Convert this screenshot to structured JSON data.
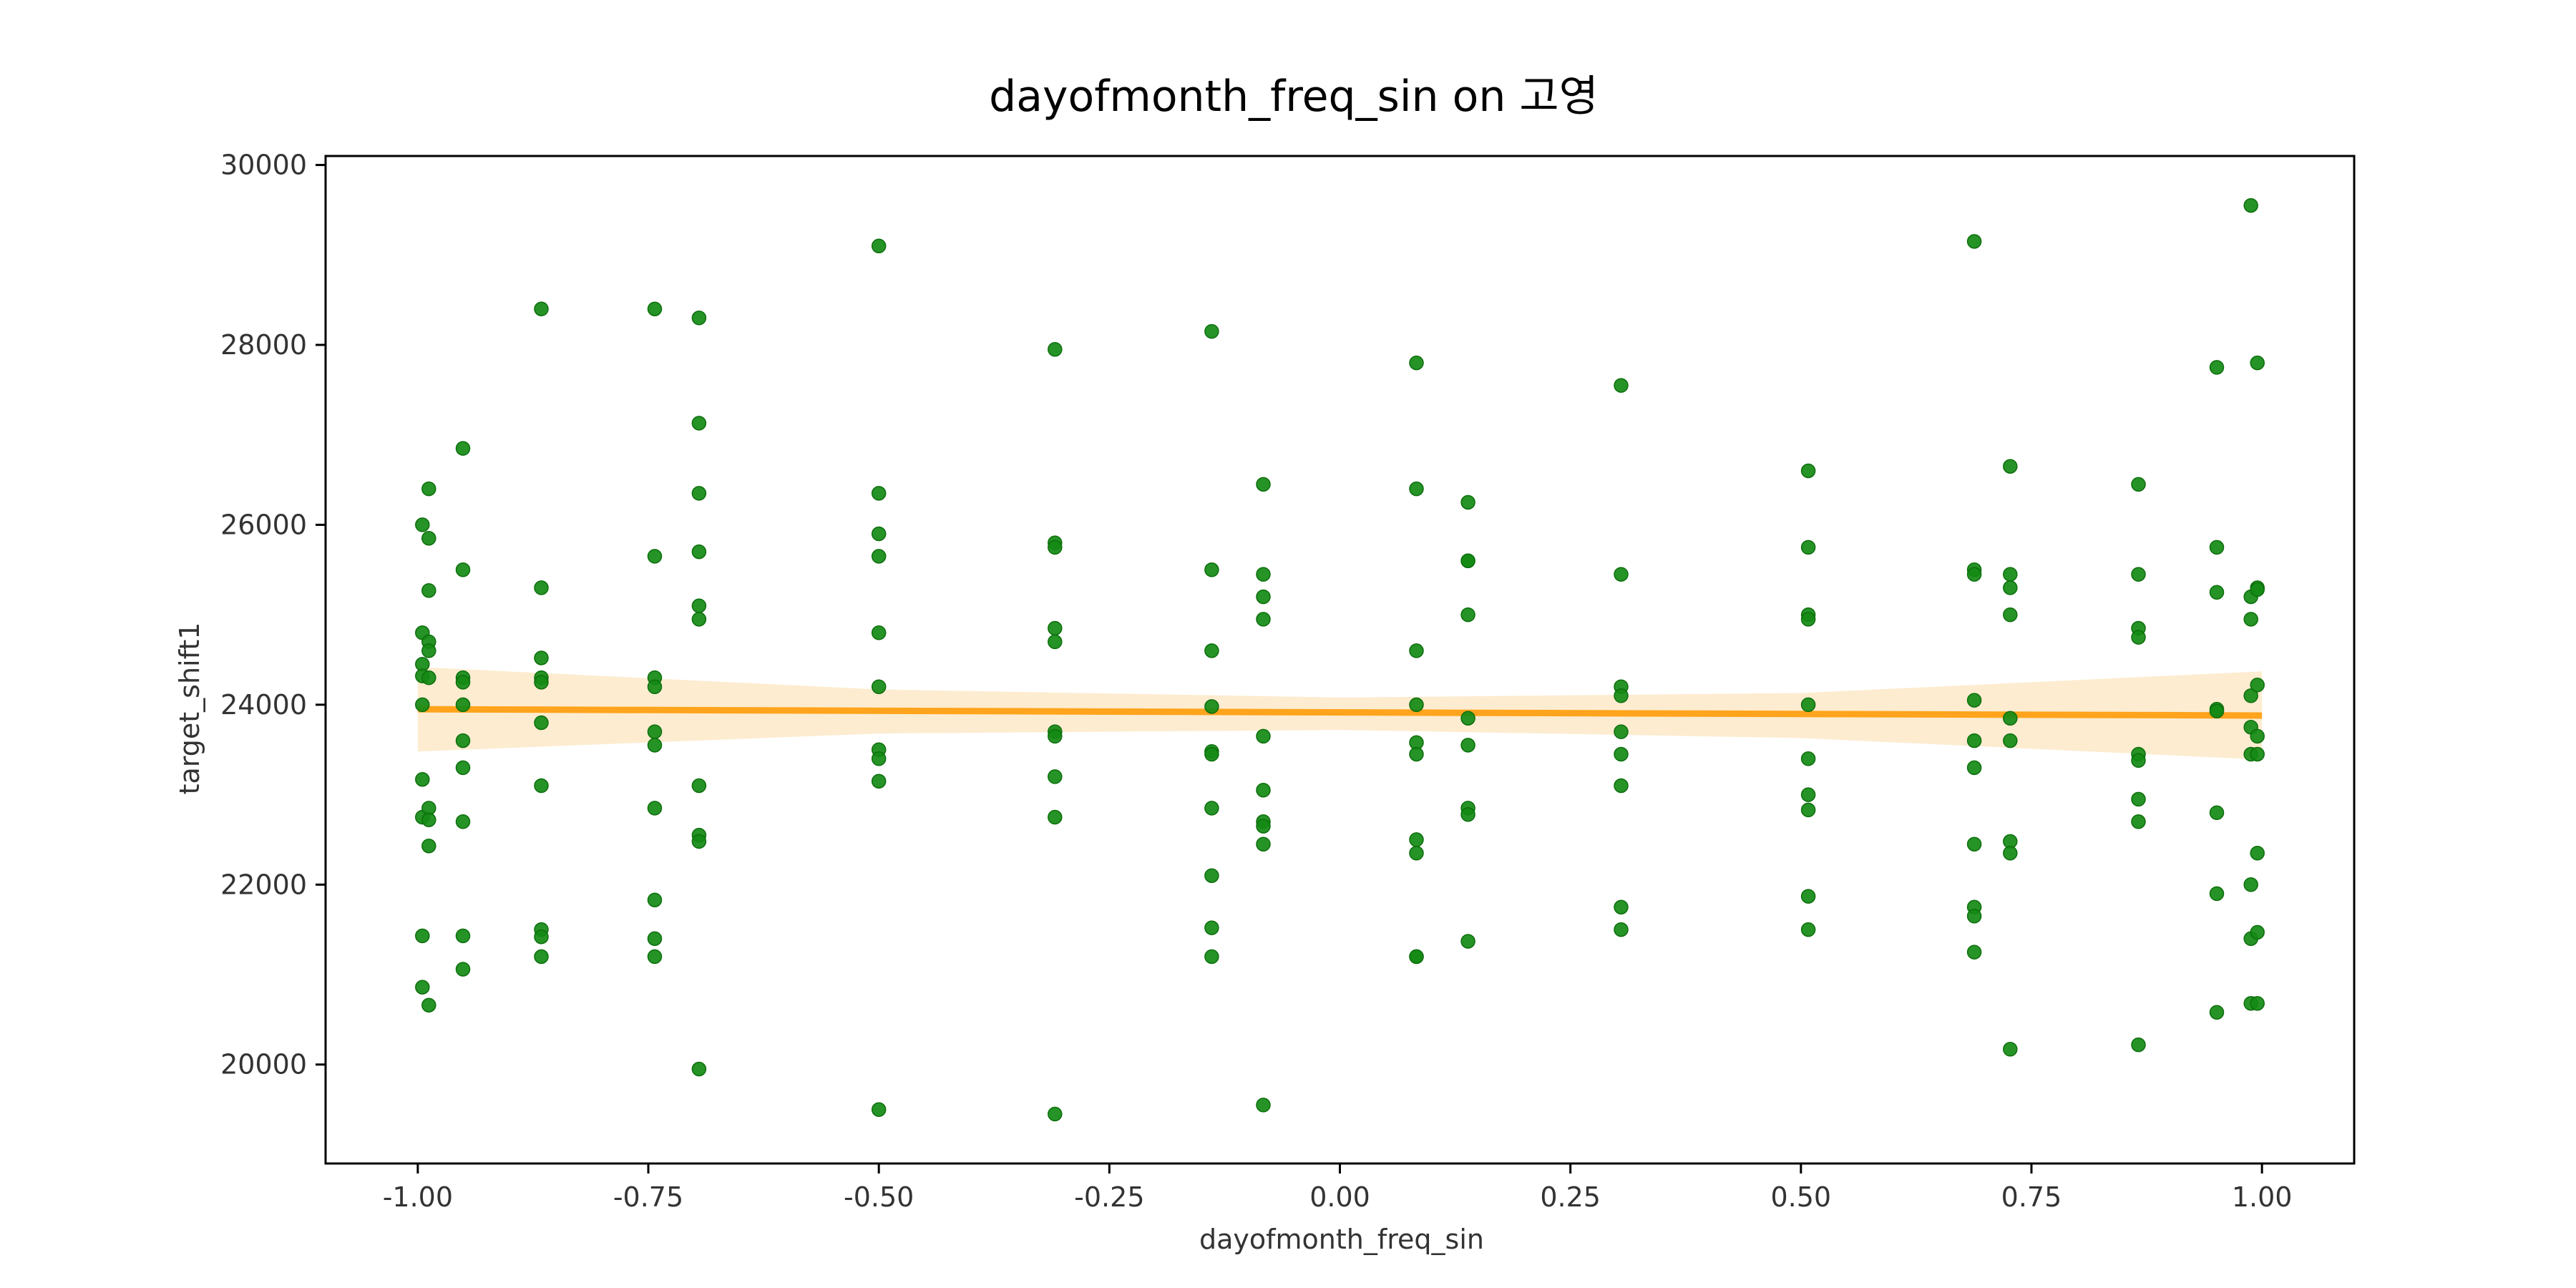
{
  "chart_data": {
    "type": "scatter",
    "title": "dayofmonth_freq_sin on 고영",
    "xlabel": "dayofmonth_freq_sin",
    "ylabel": "target_shift1",
    "xlim": [
      -1.1,
      1.1
    ],
    "ylim": [
      18900,
      30100
    ],
    "x_ticks": [
      -1.0,
      -0.75,
      -0.5,
      -0.25,
      0.0,
      0.25,
      0.5,
      0.75,
      1.0
    ],
    "x_tick_labels": [
      "-1.00",
      "-0.75",
      "-0.50",
      "-0.25",
      "0.00",
      "0.25",
      "0.50",
      "0.75",
      "1.00"
    ],
    "y_ticks": [
      20000,
      22000,
      24000,
      26000,
      28000,
      30000
    ],
    "y_tick_labels": [
      "20000",
      "22000",
      "24000",
      "26000",
      "28000",
      "30000"
    ],
    "grid": false,
    "colors": {
      "points": "#138a13",
      "line": "#ffa41c",
      "band": "#fdecd0"
    },
    "points": [
      [
        -0.995,
        26000
      ],
      [
        -0.995,
        24800
      ],
      [
        -0.995,
        24450
      ],
      [
        -0.995,
        24320
      ],
      [
        -0.995,
        24000
      ],
      [
        -0.995,
        23170
      ],
      [
        -0.995,
        22750
      ],
      [
        -0.995,
        21430
      ],
      [
        -0.995,
        20860
      ],
      [
        -0.988,
        26400
      ],
      [
        -0.988,
        25850
      ],
      [
        -0.988,
        25270
      ],
      [
        -0.988,
        24700
      ],
      [
        -0.988,
        24600
      ],
      [
        -0.988,
        24300
      ],
      [
        -0.988,
        22850
      ],
      [
        -0.988,
        22720
      ],
      [
        -0.988,
        22430
      ],
      [
        -0.988,
        20660
      ],
      [
        -0.951,
        26850
      ],
      [
        -0.951,
        25500
      ],
      [
        -0.951,
        24300
      ],
      [
        -0.951,
        24250
      ],
      [
        -0.951,
        24000
      ],
      [
        -0.951,
        23600
      ],
      [
        -0.951,
        23300
      ],
      [
        -0.951,
        22700
      ],
      [
        -0.951,
        21430
      ],
      [
        -0.951,
        21060
      ],
      [
        -0.866,
        28400
      ],
      [
        -0.866,
        25300
      ],
      [
        -0.866,
        24520
      ],
      [
        -0.866,
        24300
      ],
      [
        -0.866,
        24250
      ],
      [
        -0.866,
        23800
      ],
      [
        -0.866,
        23100
      ],
      [
        -0.866,
        21500
      ],
      [
        -0.866,
        21420
      ],
      [
        -0.866,
        21200
      ],
      [
        -0.743,
        28400
      ],
      [
        -0.743,
        25650
      ],
      [
        -0.743,
        24300
      ],
      [
        -0.743,
        24200
      ],
      [
        -0.743,
        23700
      ],
      [
        -0.743,
        23550
      ],
      [
        -0.743,
        22850
      ],
      [
        -0.743,
        21830
      ],
      [
        -0.743,
        21400
      ],
      [
        -0.743,
        21200
      ],
      [
        -0.695,
        28300
      ],
      [
        -0.695,
        27130
      ],
      [
        -0.695,
        26350
      ],
      [
        -0.695,
        25700
      ],
      [
        -0.695,
        25100
      ],
      [
        -0.695,
        24950
      ],
      [
        -0.695,
        23100
      ],
      [
        -0.695,
        22550
      ],
      [
        -0.695,
        22480
      ],
      [
        -0.695,
        19950
      ],
      [
        -0.5,
        29100
      ],
      [
        -0.5,
        26350
      ],
      [
        -0.5,
        25900
      ],
      [
        -0.5,
        25650
      ],
      [
        -0.5,
        24800
      ],
      [
        -0.5,
        24200
      ],
      [
        -0.5,
        23500
      ],
      [
        -0.5,
        23400
      ],
      [
        -0.5,
        23150
      ],
      [
        -0.5,
        19500
      ],
      [
        -0.309,
        27950
      ],
      [
        -0.309,
        25800
      ],
      [
        -0.309,
        25750
      ],
      [
        -0.309,
        24850
      ],
      [
        -0.309,
        24700
      ],
      [
        -0.309,
        23700
      ],
      [
        -0.309,
        23650
      ],
      [
        -0.309,
        23200
      ],
      [
        -0.309,
        22750
      ],
      [
        -0.309,
        19450
      ],
      [
        -0.139,
        28150
      ],
      [
        -0.139,
        25500
      ],
      [
        -0.139,
        24600
      ],
      [
        -0.139,
        23980
      ],
      [
        -0.139,
        23480
      ],
      [
        -0.139,
        23450
      ],
      [
        -0.139,
        22850
      ],
      [
        -0.139,
        22100
      ],
      [
        -0.139,
        21520
      ],
      [
        -0.139,
        21200
      ],
      [
        -0.083,
        26450
      ],
      [
        -0.083,
        25450
      ],
      [
        -0.083,
        25200
      ],
      [
        -0.083,
        24950
      ],
      [
        -0.083,
        23650
      ],
      [
        -0.083,
        23050
      ],
      [
        -0.083,
        22700
      ],
      [
        -0.083,
        22650
      ],
      [
        -0.083,
        22450
      ],
      [
        -0.083,
        19550
      ],
      [
        0.083,
        27800
      ],
      [
        0.083,
        26400
      ],
      [
        0.083,
        24600
      ],
      [
        0.083,
        24000
      ],
      [
        0.083,
        23580
      ],
      [
        0.083,
        23450
      ],
      [
        0.083,
        22500
      ],
      [
        0.083,
        22350
      ],
      [
        0.083,
        21200
      ],
      [
        0.083,
        21200
      ],
      [
        0.139,
        26250
      ],
      [
        0.139,
        25600
      ],
      [
        0.139,
        25600
      ],
      [
        0.139,
        25000
      ],
      [
        0.139,
        23850
      ],
      [
        0.139,
        23550
      ],
      [
        0.139,
        22850
      ],
      [
        0.139,
        22780
      ],
      [
        0.139,
        21370
      ],
      [
        0.305,
        27550
      ],
      [
        0.305,
        25450
      ],
      [
        0.305,
        24200
      ],
      [
        0.305,
        24100
      ],
      [
        0.305,
        23700
      ],
      [
        0.305,
        23450
      ],
      [
        0.305,
        23100
      ],
      [
        0.305,
        21750
      ],
      [
        0.305,
        21500
      ],
      [
        0.508,
        26600
      ],
      [
        0.508,
        25750
      ],
      [
        0.508,
        25000
      ],
      [
        0.508,
        24950
      ],
      [
        0.508,
        24000
      ],
      [
        0.508,
        23400
      ],
      [
        0.508,
        23000
      ],
      [
        0.508,
        22830
      ],
      [
        0.508,
        21870
      ],
      [
        0.508,
        21500
      ],
      [
        0.688,
        29150
      ],
      [
        0.688,
        25500
      ],
      [
        0.688,
        25450
      ],
      [
        0.688,
        24050
      ],
      [
        0.688,
        23600
      ],
      [
        0.688,
        23300
      ],
      [
        0.688,
        22450
      ],
      [
        0.688,
        21750
      ],
      [
        0.688,
        21650
      ],
      [
        0.688,
        21250
      ],
      [
        0.727,
        26650
      ],
      [
        0.727,
        25450
      ],
      [
        0.727,
        25300
      ],
      [
        0.727,
        25000
      ],
      [
        0.727,
        23850
      ],
      [
        0.727,
        23600
      ],
      [
        0.727,
        22480
      ],
      [
        0.727,
        22350
      ],
      [
        0.727,
        20170
      ],
      [
        0.866,
        26450
      ],
      [
        0.866,
        25450
      ],
      [
        0.866,
        24850
      ],
      [
        0.866,
        24750
      ],
      [
        0.866,
        23450
      ],
      [
        0.866,
        23380
      ],
      [
        0.866,
        22950
      ],
      [
        0.866,
        22700
      ],
      [
        0.866,
        20220
      ],
      [
        0.951,
        27750
      ],
      [
        0.951,
        25750
      ],
      [
        0.951,
        25250
      ],
      [
        0.951,
        23950
      ],
      [
        0.951,
        23930
      ],
      [
        0.951,
        22800
      ],
      [
        0.951,
        21900
      ],
      [
        0.951,
        20580
      ],
      [
        0.988,
        29550
      ],
      [
        0.988,
        25200
      ],
      [
        0.988,
        24950
      ],
      [
        0.988,
        24100
      ],
      [
        0.988,
        23750
      ],
      [
        0.988,
        23450
      ],
      [
        0.988,
        22000
      ],
      [
        0.988,
        21400
      ],
      [
        0.988,
        20680
      ],
      [
        0.995,
        27800
      ],
      [
        0.995,
        25300
      ],
      [
        0.995,
        25280
      ],
      [
        0.995,
        24220
      ],
      [
        0.995,
        23650
      ],
      [
        0.995,
        23450
      ],
      [
        0.995,
        22350
      ],
      [
        0.995,
        21470
      ],
      [
        0.995,
        20680
      ]
    ],
    "regression": {
      "x": [
        -1.0,
        1.0
      ],
      "y": [
        23950,
        23880
      ]
    },
    "confidence_band": {
      "x": [
        -1.0,
        -0.5,
        0.0,
        0.5,
        1.0
      ],
      "upper": [
        24420,
        24170,
        24080,
        24130,
        24370
      ],
      "lower": [
        23480,
        23680,
        23720,
        23630,
        23390
      ]
    }
  }
}
